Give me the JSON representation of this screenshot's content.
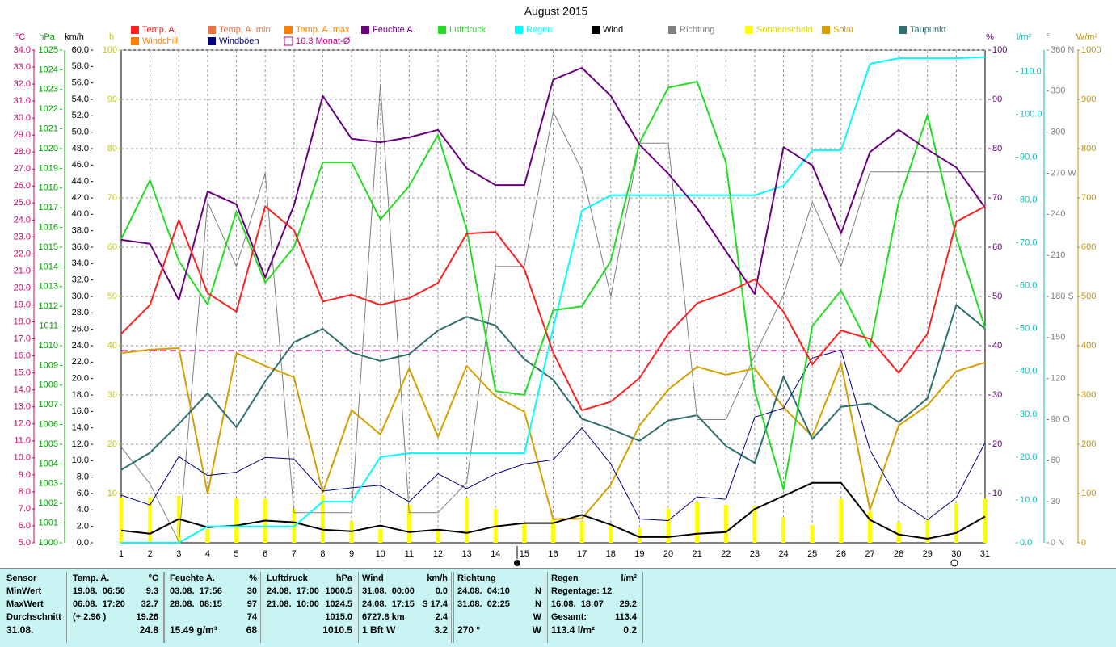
{
  "chart_data": {
    "type": "line",
    "title": "August 2015",
    "categories": [
      "1",
      "2",
      "3",
      "4",
      "5",
      "6",
      "7",
      "8",
      "9",
      "10",
      "11",
      "12",
      "13",
      "14",
      "15",
      "16",
      "17",
      "18",
      "19",
      "20",
      "21",
      "22",
      "23",
      "24",
      "25",
      "26",
      "27",
      "28",
      "29",
      "30",
      "31"
    ],
    "grid": true,
    "axes": [
      {
        "label": "°C",
        "color": "#d0006c",
        "ylim": [
          5,
          34
        ],
        "yticks": [
          {
            "value": 5,
            "label": "5.0"
          },
          {
            "value": 6,
            "label": "6.0"
          },
          {
            "value": 7,
            "label": "7.0"
          },
          {
            "value": 8,
            "label": "8.0"
          },
          {
            "value": 9,
            "label": "9.0"
          },
          {
            "value": 10,
            "label": "10.0"
          },
          {
            "value": 11,
            "label": "11.0"
          },
          {
            "value": 12,
            "label": "12.0"
          },
          {
            "value": 13,
            "label": "13.0"
          },
          {
            "value": 14,
            "label": "14.0"
          },
          {
            "value": 15,
            "label": "15.0"
          },
          {
            "value": 16,
            "label": "16.0"
          },
          {
            "value": 17,
            "label": "17.0"
          },
          {
            "value": 18,
            "label": "18.0"
          },
          {
            "value": 19,
            "label": "19.0"
          },
          {
            "value": 20,
            "label": "20.0"
          },
          {
            "value": 21,
            "label": "21.0"
          },
          {
            "value": 22,
            "label": "22.0"
          },
          {
            "value": 23,
            "label": "23.0"
          },
          {
            "value": 24,
            "label": "24.0"
          },
          {
            "value": 25,
            "label": "25.0"
          },
          {
            "value": 26,
            "label": "26.0"
          },
          {
            "value": 27,
            "label": "27.0"
          },
          {
            "value": 28,
            "label": "28.0"
          },
          {
            "value": 29,
            "label": "29.0"
          },
          {
            "value": 30,
            "label": "30.0"
          },
          {
            "value": 31,
            "label": "31.0"
          },
          {
            "value": 32,
            "label": "32.0"
          },
          {
            "value": 33,
            "label": "33.0"
          },
          {
            "value": 34,
            "label": "34.0"
          }
        ]
      },
      {
        "label": "hPa",
        "color": "#00a000",
        "ylim": [
          1000,
          1025
        ],
        "yticks": [
          1000,
          1001,
          1002,
          1003,
          1004,
          1005,
          1006,
          1007,
          1008,
          1009,
          1010,
          1011,
          1012,
          1013,
          1014,
          1015,
          1016,
          1017,
          1018,
          1019,
          1020,
          1021,
          1022,
          1023,
          1024,
          1025
        ]
      },
      {
        "label": "km/h",
        "color": "#000000",
        "ylim": [
          0,
          60
        ],
        "yticks": [
          {
            "value": 0,
            "label": "0.0"
          },
          {
            "value": 2,
            "label": "2.0"
          },
          {
            "value": 4,
            "label": "4.0"
          },
          {
            "value": 6,
            "label": "6.0"
          },
          {
            "value": 8,
            "label": "8.0"
          },
          {
            "value": 10,
            "label": "10.0"
          },
          {
            "value": 12,
            "label": "12.0"
          },
          {
            "value": 14,
            "label": "14.0"
          },
          {
            "value": 16,
            "label": "16.0"
          },
          {
            "value": 18,
            "label": "18.0"
          },
          {
            "value": 20,
            "label": "20.0"
          },
          {
            "value": 22,
            "label": "22.0"
          },
          {
            "value": 24,
            "label": "24.0"
          },
          {
            "value": 26,
            "label": "26.0"
          },
          {
            "value": 28,
            "label": "28.0"
          },
          {
            "value": 30,
            "label": "30.0"
          },
          {
            "value": 32,
            "label": "32.0"
          },
          {
            "value": 34,
            "label": "34.0"
          },
          {
            "value": 36,
            "label": "36.0"
          },
          {
            "value": 38,
            "label": "38.0"
          },
          {
            "value": 40,
            "label": "40.0"
          },
          {
            "value": 42,
            "label": "42.0"
          },
          {
            "value": 44,
            "label": "44.0"
          },
          {
            "value": 46,
            "label": "46.0"
          },
          {
            "value": 48,
            "label": "48.0"
          },
          {
            "value": 50,
            "label": "50.0"
          },
          {
            "value": 52,
            "label": "52.0"
          },
          {
            "value": 54,
            "label": "54.0"
          },
          {
            "value": 56,
            "label": "56.0"
          },
          {
            "value": 58,
            "label": "58.0"
          },
          {
            "value": 60,
            "label": "60.0"
          }
        ]
      },
      {
        "label": "h",
        "color": "#c8c800",
        "ylim": [
          0,
          100
        ],
        "yticks": [
          10,
          20,
          30,
          40,
          50,
          60,
          70,
          80,
          90,
          100
        ]
      },
      {
        "label": "%",
        "color": "#6a0080",
        "ylim": [
          0,
          100
        ],
        "yticks": [
          10,
          20,
          30,
          40,
          50,
          60,
          70,
          80,
          90,
          100
        ]
      },
      {
        "label": "l/m²",
        "color": "#00c0c0",
        "ylim": [
          0,
          115
        ],
        "yticks": [
          {
            "value": 0,
            "label": "0.0"
          },
          {
            "value": 10,
            "label": "10.0"
          },
          {
            "value": 20,
            "label": "20.0"
          },
          {
            "value": 30,
            "label": "30.0"
          },
          {
            "value": 40,
            "label": "40.0"
          },
          {
            "value": 50,
            "label": "50.0"
          },
          {
            "value": 60,
            "label": "60.0"
          },
          {
            "value": 70,
            "label": "70.0"
          },
          {
            "value": 80,
            "label": "80.0"
          },
          {
            "value": 90,
            "label": "90.0"
          },
          {
            "value": 100,
            "label": "100.0"
          },
          {
            "value": 110,
            "label": "110.0"
          }
        ]
      },
      {
        "label": "°",
        "color": "#808080",
        "ylim": [
          0,
          360
        ],
        "yticks": [
          {
            "value": 0,
            "label": "0 N"
          },
          30,
          60,
          {
            "value": 90,
            "label": "90 O"
          },
          120,
          150,
          {
            "value": 180,
            "label": "180 S"
          },
          210,
          240,
          {
            "value": 270,
            "label": "270 W"
          },
          300,
          330,
          {
            "value": 360,
            "label": "360 N"
          }
        ]
      },
      {
        "label": "W/m²",
        "color": "#c89600",
        "ylim": [
          0,
          1000
        ],
        "yticks": [
          0,
          100,
          200,
          300,
          400,
          500,
          600,
          700,
          800,
          900,
          1000
        ]
      }
    ],
    "series": [
      {
        "name": "Temp. A.",
        "color": "#ff2020",
        "axis": 0,
        "values": [
          17.3,
          19.0,
          24.0,
          19.7,
          18.6,
          24.8,
          23.4,
          19.2,
          19.6,
          19.0,
          19.4,
          20.3,
          23.2,
          23.3,
          21.1,
          16.2,
          12.8,
          13.3,
          14.7,
          17.3,
          19.1,
          19.7,
          20.5,
          18.6,
          15.5,
          17.5,
          17.0,
          15.0,
          17.3,
          23.9,
          24.8
        ]
      },
      {
        "name": "Feuchte A.",
        "color": "#6a0080",
        "axis": 4,
        "values": [
          61.5,
          60.7,
          49.3,
          71.3,
          68.7,
          53.8,
          68.5,
          90.7,
          82,
          81.3,
          82.3,
          83.8,
          76,
          72.6,
          72.6,
          94,
          96.4,
          90.7,
          80.8,
          74.9,
          67.9,
          59.2,
          50.5,
          80.3,
          76.6,
          62.8,
          79.3,
          83.8,
          79.8,
          76.2,
          68
        ]
      },
      {
        "name": "Luftdruck",
        "color": "#22dd22",
        "axis": 1,
        "values": [
          1015.4,
          1018.4,
          1014.3,
          1012.1,
          1016.8,
          1013.2,
          1015.0,
          1019.3,
          1019.3,
          1016.4,
          1018.1,
          1020.7,
          1015.9,
          1007.7,
          1007.5,
          1011.8,
          1012.0,
          1014.3,
          1020.3,
          1023.1,
          1023.4,
          1019.3,
          1007.7,
          1002.7,
          1011.0,
          1012.8,
          1009.9,
          1017.3,
          1021.7,
          1015.5,
          1010.9
        ]
      },
      {
        "name": "Regen",
        "color": "#00ffff",
        "axis": 5,
        "values": [
          0,
          0,
          0,
          3.8,
          3.8,
          3.8,
          3.8,
          9.6,
          9.6,
          20.0,
          20.9,
          20.9,
          20.9,
          20.9,
          20.9,
          50.1,
          77.5,
          81.1,
          81.1,
          81.1,
          81.1,
          81.1,
          81.1,
          83.3,
          91.6,
          91.6,
          111.8,
          113.1,
          113.1,
          113.1,
          113.4
        ]
      },
      {
        "name": "Wind",
        "color": "#000000",
        "axis": 2,
        "values": [
          1.5,
          1.1,
          2.9,
          1.9,
          2.1,
          2.7,
          2.5,
          1.6,
          1.4,
          2.1,
          1.3,
          1.6,
          1.2,
          2.0,
          2.4,
          2.4,
          3.4,
          2.2,
          0.7,
          0.7,
          1.1,
          1.3,
          4.1,
          5.7,
          7.3,
          7.3,
          2.8,
          1.0,
          0.5,
          1.2,
          3.2
        ]
      },
      {
        "name": "Richtung",
        "color": "#808080",
        "axis": 6,
        "values": [
          70,
          43,
          1,
          249,
          202,
          270,
          22,
          22,
          22,
          335,
          22,
          22,
          44,
          202,
          202,
          315,
          272,
          180,
          292,
          292,
          90,
          90,
          137,
          181,
          249,
          202,
          271,
          271,
          271,
          271,
          271
        ]
      },
      {
        "name": "Sonnenschein",
        "color": "#ffff00",
        "axis": 3,
        "type": "bar",
        "values": [
          9.2,
          9.3,
          9.5,
          2.8,
          9.0,
          8.9,
          6.9,
          9.7,
          4.4,
          2.8,
          7.7,
          2.8,
          9.2,
          6.9,
          3.9,
          4.9,
          4.4,
          3.6,
          3.0,
          6.9,
          8.2,
          7.7,
          7.4,
          5.2,
          3.6,
          8.9,
          6.4,
          4.1,
          4.8,
          8.0,
          9.0
        ]
      },
      {
        "name": "Solar",
        "color": "#d4a000",
        "axis": 7,
        "values": [
          385,
          392,
          395,
          100,
          385,
          359,
          336,
          102,
          269,
          220,
          354,
          215,
          359,
          297,
          266,
          48,
          49,
          118,
          238,
          311,
          357,
          341,
          354,
          275,
          216,
          364,
          67,
          238,
          279,
          348,
          366
        ]
      },
      {
        "name": "Taupunkt",
        "color": "#2f6f6f",
        "axis": 0,
        "values": [
          9.3,
          10.3,
          12.0,
          13.8,
          11.8,
          14.5,
          16.8,
          17.6,
          16.2,
          15.7,
          16.1,
          17.5,
          18.3,
          17.8,
          15.8,
          14.6,
          12.3,
          11.7,
          11.0,
          12.2,
          12.5,
          10.7,
          9.7,
          14.8,
          11.1,
          13.0,
          13.2,
          12.1,
          13.5,
          19.0,
          17.6
        ]
      },
      {
        "name": "Windböen",
        "color": "#000080",
        "axis": 2,
        "values": [
          5.8,
          4.6,
          10.5,
          8.2,
          8.6,
          10.4,
          10.2,
          6.3,
          6.7,
          7.0,
          5.0,
          8.4,
          6.6,
          8.4,
          9.6,
          10.1,
          14.0,
          9.6,
          2.9,
          2.7,
          5.6,
          5.3,
          15.3,
          16.4,
          22.5,
          23.5,
          11.3,
          5.1,
          2.8,
          5.5,
          12.2
        ]
      }
    ],
    "legend_extra": [
      {
        "name": "Temp. A. min",
        "color": "#f07040"
      },
      {
        "name": "Temp. A. max",
        "color": "#ff7f00"
      },
      {
        "name": "Windchill",
        "color": "#ff7f00"
      }
    ],
    "reference_lines": [
      {
        "label": "16.3 Monat-Ø",
        "value": 16.3,
        "axis": 0,
        "color": "#c0008c"
      }
    ]
  },
  "stats": {
    "row_labels": [
      "Sensor",
      "MinWert",
      "MaxWert",
      "Durchschnitt",
      "31.08."
    ],
    "sections": [
      {
        "title": "Temp. A.",
        "unit": "°C",
        "rows": [
          [
            "19.08.  06:50",
            "9.3"
          ],
          [
            "06.08.  17:20",
            "32.7"
          ],
          [
            "(+ 2.96 )",
            "19.26"
          ],
          [
            null,
            "24.8"
          ]
        ]
      },
      {
        "title": "Feuchte A.",
        "unit": "%",
        "rows": [
          [
            "03.08.  17:56",
            "30"
          ],
          [
            "28.08.  08:15",
            "97"
          ],
          [
            null,
            "74"
          ],
          [
            "15.49 g/m³",
            "68"
          ]
        ]
      },
      {
        "title": "Luftdruck",
        "unit": "hPa",
        "rows": [
          [
            "24.08.  17:00",
            "1000.5"
          ],
          [
            "21.08.  10:00",
            "1024.5"
          ],
          [
            null,
            "1015.0"
          ],
          [
            null,
            "1010.5"
          ]
        ]
      },
      {
        "title": "Wind",
        "unit": "km/h",
        "rows": [
          [
            "31.08.  00:00",
            "0.0"
          ],
          [
            "24.08.  17:15",
            "S 17.4"
          ],
          [
            "6727.8 km",
            "2.4"
          ],
          [
            "1 Bft W",
            "3.2"
          ]
        ]
      },
      {
        "title": "Richtung",
        "unit": null,
        "rows": [
          [
            "24.08.  04:10",
            "N"
          ],
          [
            "31.08.  02:25",
            "N"
          ],
          [
            null,
            "W"
          ],
          [
            "270 °",
            "W"
          ]
        ]
      },
      {
        "title": "Regen",
        "unit": "l/m²",
        "rows": [
          [
            "Regentage: 12",
            null
          ],
          [
            "16.08.  18:07",
            "29.2"
          ],
          [
            "Gesamt:",
            "113.4"
          ],
          [
            "113.4 l/m²",
            "0.2"
          ]
        ]
      }
    ]
  }
}
